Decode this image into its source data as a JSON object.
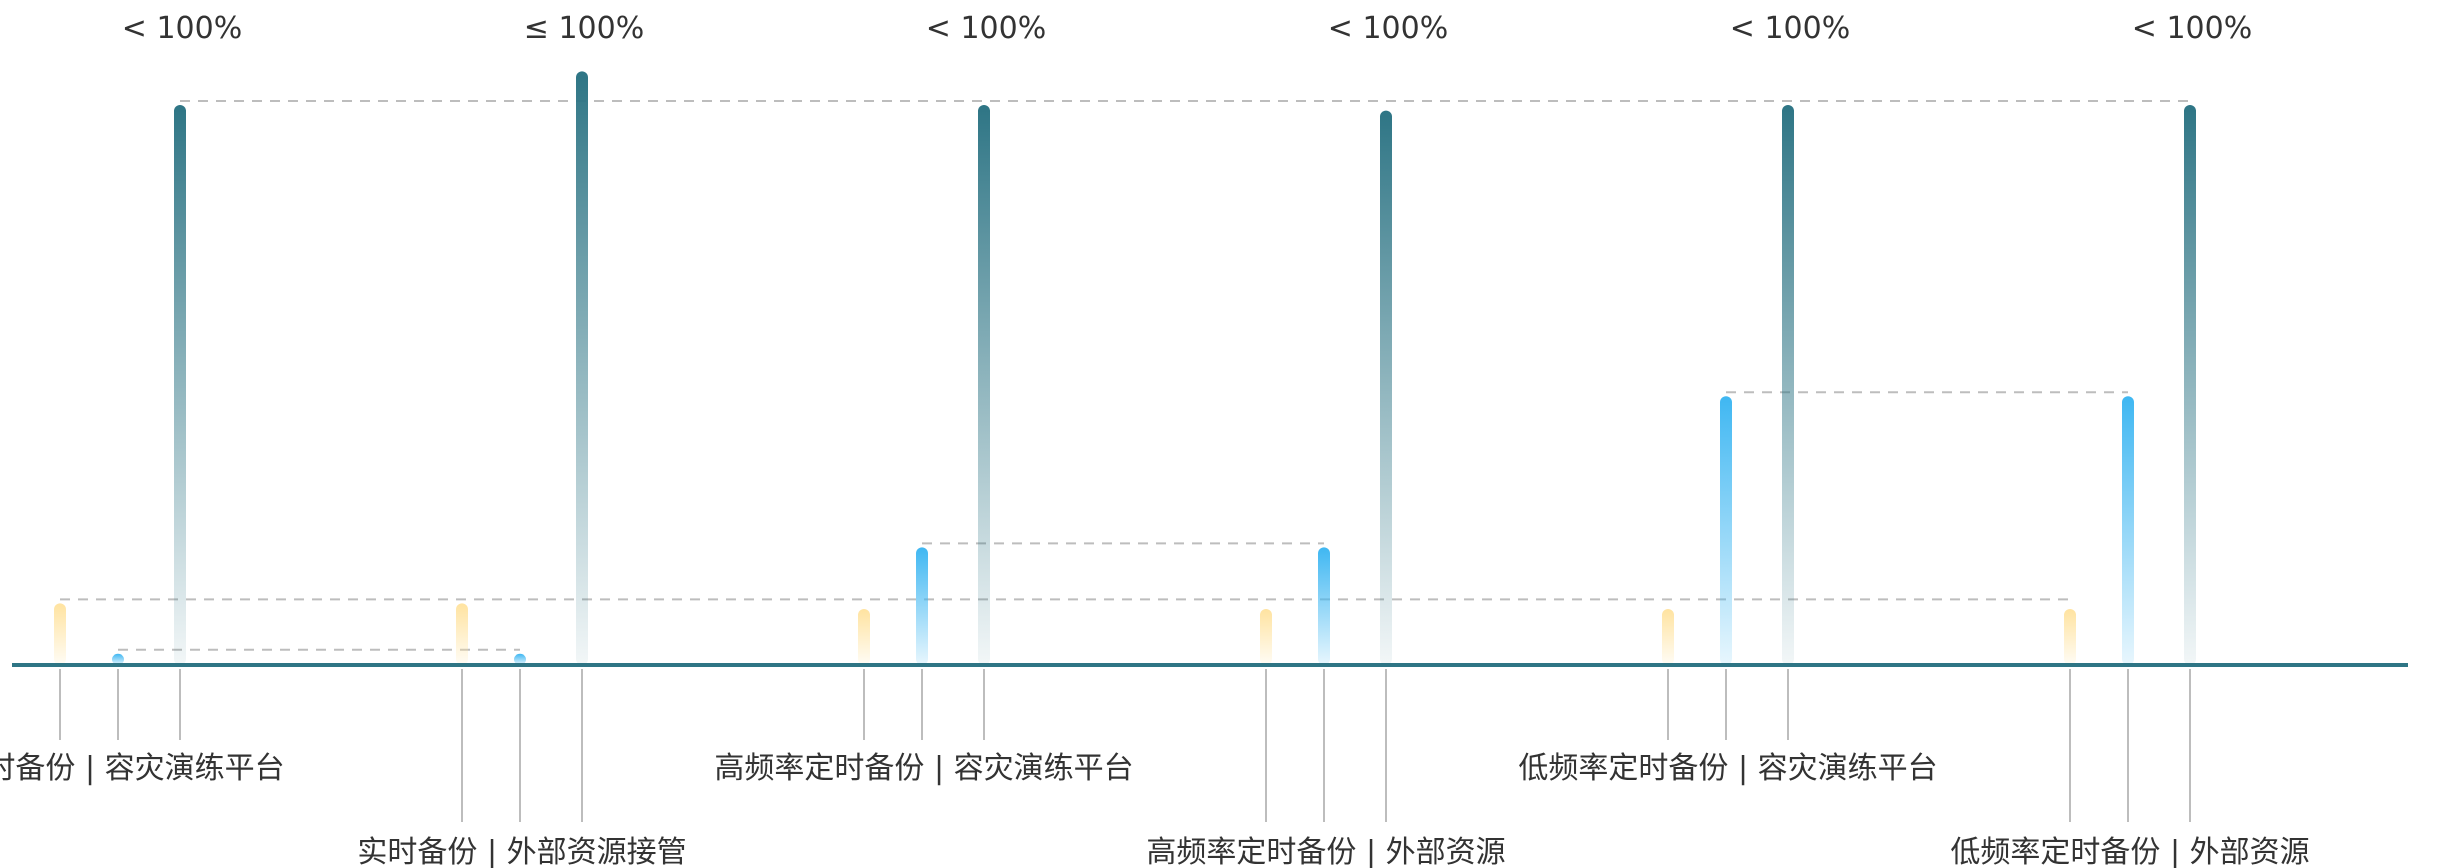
{
  "chart_data": {
    "type": "bar",
    "title": "",
    "xlabel": "",
    "ylabel": "",
    "grid": false,
    "legend": "none",
    "metrics": [
      "metric-1",
      "metric-2",
      "metric-3"
    ],
    "groups": [
      {
        "label": "实时备份 | 容灾演练平台",
        "top_label": "< 100%",
        "values": [
          11,
          2,
          100
        ]
      },
      {
        "label": "实时备份 | 外部资源接管",
        "top_label": "≤ 100%",
        "values": [
          11,
          2,
          106
        ]
      },
      {
        "label": "高频率定时备份 | 容灾演练平台",
        "top_label": "< 100%",
        "values": [
          10,
          21,
          100
        ]
      },
      {
        "label": "高频率定时备份 | 外部资源",
        "top_label": "< 100%",
        "values": [
          10,
          21,
          99
        ]
      },
      {
        "label": "低频率定时备份 | 容灾演练平台",
        "top_label": "< 100%",
        "values": [
          10,
          48,
          100
        ]
      },
      {
        "label": "低频率定时备份 | 外部资源",
        "top_label": "< 100%",
        "values": [
          10,
          48,
          100
        ]
      }
    ],
    "reference_lines": [
      {
        "from_group": 0,
        "to_group": 5,
        "metric": 0
      },
      {
        "from_group": 0,
        "to_group": 1,
        "metric": 1
      },
      {
        "from_group": 2,
        "to_group": 3,
        "metric": 1
      },
      {
        "from_group": 4,
        "to_group": 5,
        "metric": 1
      },
      {
        "from_group": 0,
        "to_group": 5,
        "metric": 2
      }
    ],
    "colors": {
      "metric1": "#FFE7A8",
      "metric2": "#3FB7F2",
      "metric3": "#2E7585",
      "baseline": "#2E7585",
      "reference": "#BDBDBD",
      "tick": "#BDBDBD",
      "text": "#333333"
    }
  }
}
